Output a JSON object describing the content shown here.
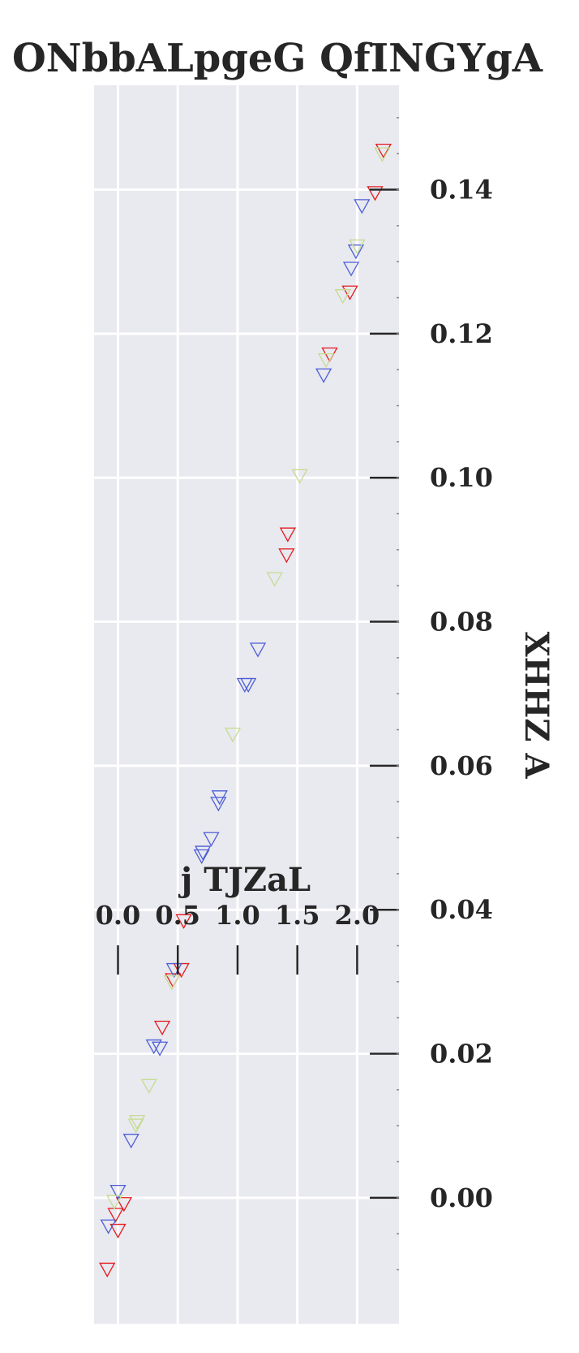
{
  "chart_data": {
    "type": "scatter",
    "title": "ONbbALpgeG QfINGYgA",
    "xlabel": "j TJZaL",
    "ylabel": "XHHZ A",
    "xlim": [
      -0.2,
      2.35
    ],
    "ylim": [
      -0.0175,
      0.1545
    ],
    "xticks": [
      0.0,
      0.5,
      1.0,
      1.5,
      2.0
    ],
    "xtick_labels": [
      "0.0",
      "0.5",
      "1.0",
      "1.5",
      "2.0"
    ],
    "yticks": [
      0.0,
      0.02,
      0.04,
      0.06,
      0.08,
      0.1,
      0.12,
      0.14
    ],
    "ytick_labels": [
      "0.00",
      "0.02",
      "0.04",
      "0.06",
      "0.08",
      "0.10",
      "0.12",
      "0.14"
    ],
    "x_axis_position": "inside-plot",
    "y_axis_position": "right",
    "grid": true,
    "marker": "triangle_down_open",
    "series": [
      {
        "color": "#e41a1c",
        "points": [
          [
            2.22,
            0.1455
          ],
          [
            2.15,
            0.1396
          ],
          [
            1.94,
            0.1258
          ],
          [
            1.77,
            0.1172
          ],
          [
            1.42,
            0.0922
          ],
          [
            1.41,
            0.0893
          ],
          [
            0.55,
            0.0385
          ],
          [
            0.53,
            0.0317
          ],
          [
            0.46,
            0.0303
          ],
          [
            0.37,
            0.0237
          ],
          [
            0.05,
            -0.0008
          ],
          [
            -0.02,
            -0.0023
          ],
          [
            0.0,
            -0.0045
          ],
          [
            -0.09,
            -0.0099
          ]
        ]
      },
      {
        "color": "#4c5fd6",
        "points": [
          [
            2.04,
            0.1378
          ],
          [
            1.99,
            0.1315
          ],
          [
            1.95,
            0.1291
          ],
          [
            1.72,
            0.1143
          ],
          [
            1.17,
            0.0762
          ],
          [
            1.09,
            0.0713
          ],
          [
            1.06,
            0.0713
          ],
          [
            0.85,
            0.0557
          ],
          [
            0.84,
            0.0548
          ],
          [
            0.78,
            0.0499
          ],
          [
            0.71,
            0.048
          ],
          [
            0.7,
            0.0475
          ],
          [
            0.47,
            0.0317
          ],
          [
            0.35,
            0.0208
          ],
          [
            0.3,
            0.0211
          ],
          [
            0.11,
            0.008
          ],
          [
            0.0,
            0.0009
          ],
          [
            -0.08,
            -0.0039
          ]
        ]
      },
      {
        "color": "#c5dc8e",
        "points": [
          [
            2.21,
            0.145
          ],
          [
            2.0,
            0.1322
          ],
          [
            1.88,
            0.1253
          ],
          [
            1.74,
            0.1164
          ],
          [
            1.52,
            0.1003
          ],
          [
            1.31,
            0.086
          ],
          [
            0.96,
            0.0644
          ],
          [
            0.45,
            0.03
          ],
          [
            0.26,
            0.0156
          ],
          [
            0.16,
            0.0106
          ],
          [
            0.15,
            0.0101
          ],
          [
            -0.03,
            -0.0005
          ]
        ]
      }
    ]
  }
}
